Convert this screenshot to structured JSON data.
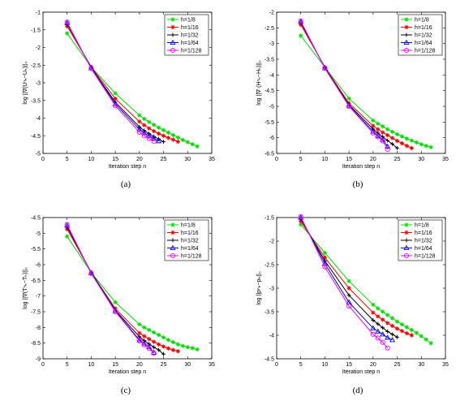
{
  "series_styles": [
    {
      "name": "h=1/8",
      "color": "#00dd00",
      "marker": "star"
    },
    {
      "name": "h=1/16",
      "color": "#ff0000",
      "marker": "star"
    },
    {
      "name": "h=1/32",
      "color": "#000000",
      "marker": "plus"
    },
    {
      "name": "h=1/64",
      "color": "#0000ff",
      "marker": "triangle"
    },
    {
      "name": "h=1/128",
      "color": "#ff00ff",
      "marker": "circle"
    }
  ],
  "chart_data": [
    {
      "type": "line",
      "panel_caption": "(a)",
      "xlabel": "Iteration step n",
      "ylabel": "log ||∇(Uⁿₕ−Uₕ)||₀",
      "xlim": [
        0,
        35
      ],
      "ylim": [
        -5,
        -1
      ],
      "xticks": [
        0,
        5,
        10,
        15,
        20,
        25,
        30,
        35
      ],
      "yticks": [
        -5,
        -4.5,
        -4,
        -3.5,
        -3,
        -2.5,
        -2,
        -1.5,
        -1
      ],
      "legend": "top-right",
      "series": [
        {
          "name": "h=1/8",
          "x": [
            5,
            10,
            15,
            20,
            21,
            22,
            23,
            24,
            25,
            26,
            27,
            28,
            29,
            30,
            31,
            32
          ],
          "y": [
            -1.6,
            -2.55,
            -3.3,
            -3.92,
            -4.02,
            -4.11,
            -4.19,
            -4.27,
            -4.34,
            -4.41,
            -4.48,
            -4.55,
            -4.62,
            -4.68,
            -4.74,
            -4.8
          ]
        },
        {
          "name": "h=1/16",
          "x": [
            5,
            10,
            15,
            20,
            21,
            22,
            23,
            24,
            25,
            26,
            27,
            28
          ],
          "y": [
            -1.4,
            -2.55,
            -3.45,
            -4.1,
            -4.2,
            -4.29,
            -4.37,
            -4.44,
            -4.5,
            -4.56,
            -4.61,
            -4.67
          ]
        },
        {
          "name": "h=1/32",
          "x": [
            5,
            10,
            15,
            20,
            21,
            22,
            23,
            24,
            25
          ],
          "y": [
            -1.33,
            -2.57,
            -3.55,
            -4.25,
            -4.35,
            -4.44,
            -4.52,
            -4.59,
            -4.67
          ]
        },
        {
          "name": "h=1/64",
          "x": [
            5,
            10,
            15,
            20,
            21,
            22,
            23,
            24
          ],
          "y": [
            -1.3,
            -2.58,
            -3.6,
            -4.32,
            -4.42,
            -4.5,
            -4.58,
            -4.65
          ]
        },
        {
          "name": "h=1/128",
          "x": [
            5,
            10,
            15,
            20,
            21,
            22,
            23
          ],
          "y": [
            -1.28,
            -2.6,
            -3.65,
            -4.4,
            -4.5,
            -4.58,
            -4.66
          ]
        }
      ]
    },
    {
      "type": "line",
      "panel_caption": "(b)",
      "xlabel": "Iteration step n",
      "ylabel": "log ||∇·(Hⁿₕ−Hₕ)||₀",
      "xlim": [
        0,
        35
      ],
      "ylim": [
        -6.5,
        -2
      ],
      "xticks": [
        0,
        5,
        10,
        15,
        20,
        25,
        30,
        35
      ],
      "yticks": [
        -6.5,
        -6,
        -5.5,
        -5,
        -4.5,
        -4,
        -3.5,
        -3,
        -2.5,
        -2
      ],
      "legend": "top-right",
      "series": [
        {
          "name": "h=1/8",
          "x": [
            5,
            10,
            15,
            20,
            21,
            22,
            23,
            24,
            25,
            26,
            27,
            28,
            29,
            30,
            31,
            32
          ],
          "y": [
            -2.75,
            -3.75,
            -4.75,
            -5.45,
            -5.55,
            -5.64,
            -5.73,
            -5.81,
            -5.89,
            -5.96,
            -6.03,
            -6.09,
            -6.15,
            -6.21,
            -6.26,
            -6.3
          ]
        },
        {
          "name": "h=1/16",
          "x": [
            5,
            10,
            15,
            20,
            21,
            22,
            23,
            24,
            25,
            26,
            27,
            28
          ],
          "y": [
            -2.4,
            -3.75,
            -4.9,
            -5.62,
            -5.73,
            -5.83,
            -5.92,
            -6.01,
            -6.1,
            -6.18,
            -6.26,
            -6.33
          ]
        },
        {
          "name": "h=1/32",
          "x": [
            5,
            10,
            15,
            20,
            21,
            22,
            23,
            24,
            25
          ],
          "y": [
            -2.33,
            -3.77,
            -4.95,
            -5.72,
            -5.85,
            -5.97,
            -6.09,
            -6.2,
            -6.33
          ]
        },
        {
          "name": "h=1/64",
          "x": [
            5,
            10,
            15,
            20,
            21,
            22,
            23
          ],
          "y": [
            -2.3,
            -3.78,
            -4.98,
            -5.8,
            -5.94,
            -6.06,
            -6.28
          ]
        },
        {
          "name": "h=1/128",
          "x": [
            5,
            10,
            15,
            20,
            21,
            22,
            23
          ],
          "y": [
            -2.28,
            -3.79,
            -5.0,
            -5.85,
            -5.97,
            -6.1,
            -6.37
          ]
        }
      ]
    },
    {
      "type": "line",
      "panel_caption": "(c)",
      "xlabel": "Iteration step n",
      "ylabel": "log ||∇(Tⁿₕ−Tₕ)||₀",
      "xlim": [
        0,
        35
      ],
      "ylim": [
        -9,
        -4.5
      ],
      "xticks": [
        0,
        5,
        10,
        15,
        20,
        25,
        30,
        35
      ],
      "yticks": [
        -9,
        -8.5,
        -8,
        -7.5,
        -7,
        -6.5,
        -6,
        -5.5,
        -5,
        -4.5
      ],
      "legend": "top-right",
      "series": [
        {
          "name": "h=1/8",
          "x": [
            5,
            10,
            15,
            20,
            21,
            22,
            23,
            24,
            25,
            26,
            27,
            28,
            29,
            30,
            31,
            32
          ],
          "y": [
            -5.1,
            -6.25,
            -7.2,
            -7.9,
            -8.0,
            -8.08,
            -8.16,
            -8.24,
            -8.32,
            -8.4,
            -8.47,
            -8.54,
            -8.59,
            -8.63,
            -8.66,
            -8.7
          ]
        },
        {
          "name": "h=1/16",
          "x": [
            5,
            10,
            15,
            20,
            21,
            22,
            23,
            24,
            25,
            26,
            27,
            28
          ],
          "y": [
            -4.87,
            -6.25,
            -7.4,
            -8.18,
            -8.28,
            -8.37,
            -8.46,
            -8.54,
            -8.61,
            -8.67,
            -8.72,
            -8.76
          ]
        },
        {
          "name": "h=1/32",
          "x": [
            5,
            10,
            15,
            20,
            21,
            22,
            23,
            24,
            25
          ],
          "y": [
            -4.8,
            -6.25,
            -7.45,
            -8.3,
            -8.42,
            -8.53,
            -8.63,
            -8.72,
            -8.85
          ]
        },
        {
          "name": "h=1/64",
          "x": [
            5,
            10,
            15,
            20,
            21,
            22,
            23
          ],
          "y": [
            -4.75,
            -6.27,
            -7.47,
            -8.4,
            -8.51,
            -8.62,
            -8.8
          ]
        },
        {
          "name": "h=1/128",
          "x": [
            5,
            10,
            15,
            20,
            21,
            22,
            23
          ],
          "y": [
            -4.72,
            -6.28,
            -7.5,
            -8.43,
            -8.56,
            -8.67,
            -8.82
          ]
        }
      ]
    },
    {
      "type": "line",
      "panel_caption": "(d)",
      "xlabel": "Iteration step n",
      "ylabel": "log ||pⁿₕ−pₕ||₀",
      "xlim": [
        0,
        35
      ],
      "ylim": [
        -4.5,
        -1.5
      ],
      "xticks": [
        0,
        5,
        10,
        15,
        20,
        25,
        30,
        35
      ],
      "yticks": [
        -4.5,
        -4,
        -3.5,
        -3,
        -2.5,
        -2,
        -1.5
      ],
      "legend": "top-right",
      "series": [
        {
          "name": "h=1/8",
          "x": [
            5,
            10,
            15,
            20,
            21,
            22,
            23,
            24,
            25,
            26,
            27,
            28,
            29,
            30,
            31,
            32
          ],
          "y": [
            -1.65,
            -2.25,
            -2.85,
            -3.35,
            -3.43,
            -3.5,
            -3.57,
            -3.64,
            -3.71,
            -3.77,
            -3.83,
            -3.89,
            -3.95,
            -4.02,
            -4.09,
            -4.17
          ]
        },
        {
          "name": "h=1/16",
          "x": [
            5,
            10,
            15,
            20,
            21,
            22,
            23,
            24,
            25,
            26,
            27,
            28
          ],
          "y": [
            -1.58,
            -2.35,
            -3.0,
            -3.52,
            -3.6,
            -3.67,
            -3.74,
            -3.8,
            -3.86,
            -3.91,
            -3.96,
            -4.0
          ]
        },
        {
          "name": "h=1/32",
          "x": [
            5,
            10,
            15,
            20,
            21,
            22,
            23,
            24,
            25
          ],
          "y": [
            -1.53,
            -2.42,
            -3.15,
            -3.68,
            -3.76,
            -3.84,
            -3.92,
            -3.98,
            -4.04
          ]
        },
        {
          "name": "h=1/64",
          "x": [
            5,
            10,
            15,
            20,
            21,
            22,
            23,
            24
          ],
          "y": [
            -1.5,
            -2.48,
            -3.3,
            -3.85,
            -3.92,
            -3.98,
            -4.05,
            -4.1
          ]
        },
        {
          "name": "h=1/128",
          "x": [
            5,
            10,
            15,
            20,
            21,
            22,
            23
          ],
          "y": [
            -1.48,
            -2.55,
            -3.38,
            -3.98,
            -4.06,
            -4.15,
            -4.27
          ]
        }
      ]
    }
  ]
}
